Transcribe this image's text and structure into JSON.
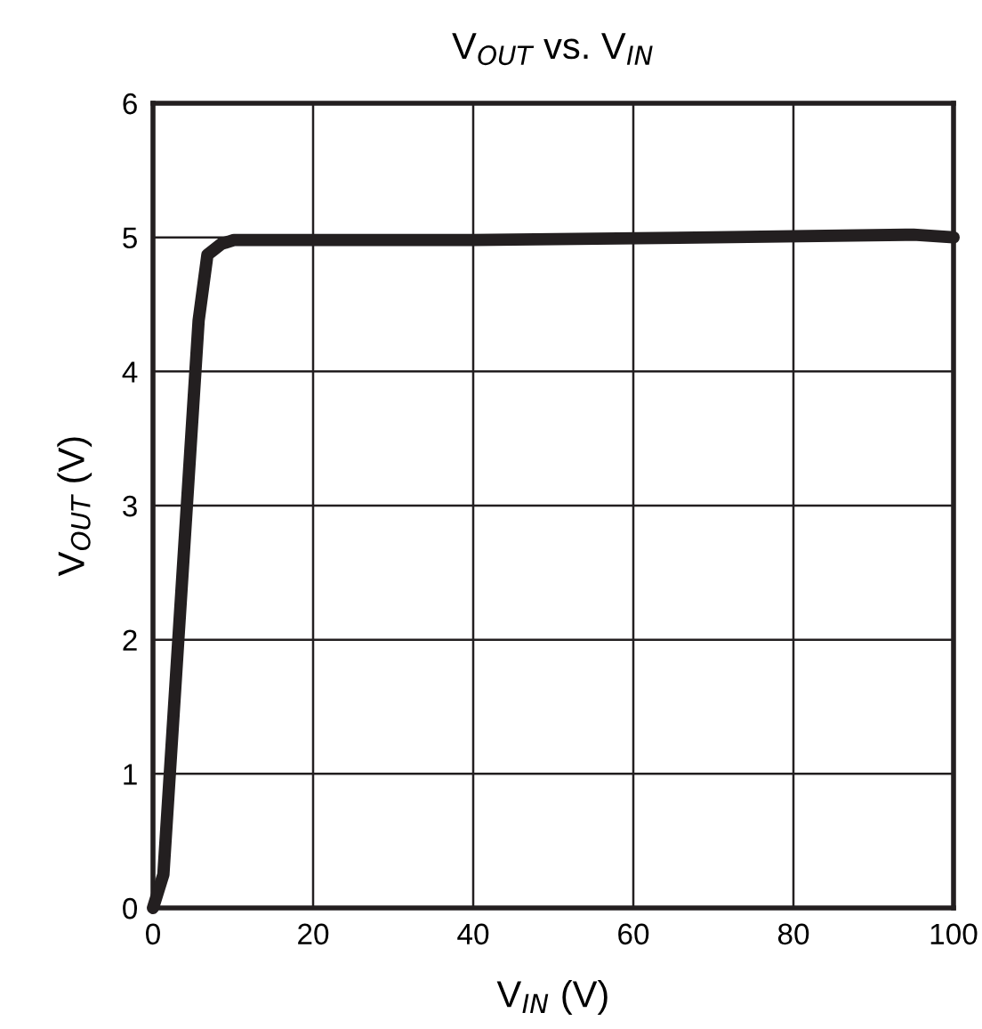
{
  "chart_data": {
    "type": "line",
    "title": "V$_{OUT}$ vs. V$_{IN}$",
    "xlabel": "V$_{IN}$ (V)",
    "ylabel": "V$_{OUT}$ (V)",
    "series": [
      {
        "color": "#231f20",
        "x": [
          0,
          1.3,
          5.7,
          6.8,
          8.5,
          10.1,
          40,
          70,
          95,
          100
        ],
        "values": [
          0,
          0.25,
          4.38,
          4.87,
          4.95,
          4.98,
          4.98,
          5.0,
          5.02,
          5.0
        ]
      }
    ],
    "xlim": [
      0,
      100
    ],
    "xticks": [
      0,
      20,
      40,
      60,
      80,
      100
    ],
    "ylim": [
      0,
      6
    ],
    "yticks": [
      0,
      1,
      2,
      3,
      4,
      5,
      6
    ],
    "grid": true,
    "marker": "none",
    "line_style": "solid"
  }
}
